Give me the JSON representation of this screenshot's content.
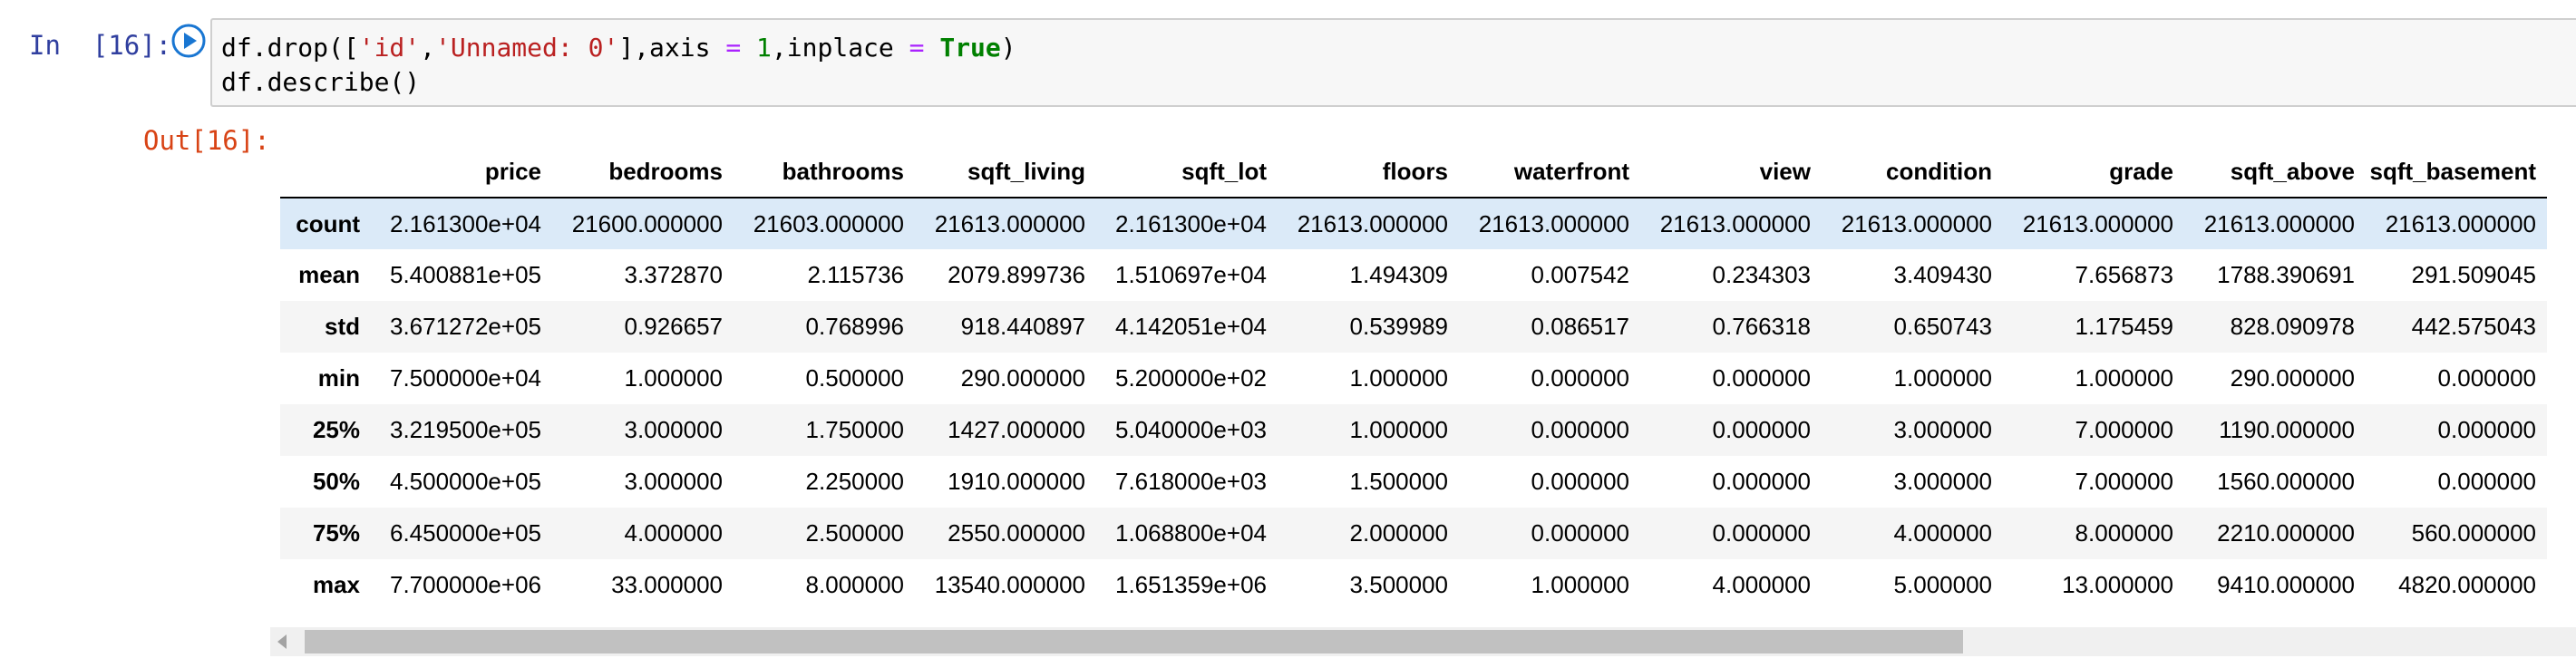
{
  "input_cell": {
    "prompt": "In  [16]:",
    "code": {
      "line1": {
        "call": "df.drop(",
        "list_open": "[",
        "str1": "'id'",
        "comma1": ",",
        "str2": "'Unnamed: 0'",
        "list_close": "]",
        "comma2": ",axis ",
        "eq1": "=",
        "num": " 1",
        "comma3": ",inplace ",
        "eq2": "=",
        "kw": " True",
        "close": ")"
      },
      "line2": "df.describe()"
    },
    "run_icon": "play-circle-icon"
  },
  "output_cell": {
    "prompt": "Out[16]:",
    "table": {
      "columns": [
        "price",
        "bedrooms",
        "bathrooms",
        "sqft_living",
        "sqft_lot",
        "floors",
        "waterfront",
        "view",
        "condition",
        "grade",
        "sqft_above",
        "sqft_basement"
      ],
      "rows": [
        {
          "label": "count",
          "values": [
            "2.161300e+04",
            "21600.000000",
            "21603.000000",
            "21613.000000",
            "2.161300e+04",
            "21613.000000",
            "21613.000000",
            "21613.000000",
            "21613.000000",
            "21613.000000",
            "21613.000000",
            "21613.000000"
          ]
        },
        {
          "label": "mean",
          "values": [
            "5.400881e+05",
            "3.372870",
            "2.115736",
            "2079.899736",
            "1.510697e+04",
            "1.494309",
            "0.007542",
            "0.234303",
            "3.409430",
            "7.656873",
            "1788.390691",
            "291.509045"
          ]
        },
        {
          "label": "std",
          "values": [
            "3.671272e+05",
            "0.926657",
            "0.768996",
            "918.440897",
            "4.142051e+04",
            "0.539989",
            "0.086517",
            "0.766318",
            "0.650743",
            "1.175459",
            "828.090978",
            "442.575043"
          ]
        },
        {
          "label": "min",
          "values": [
            "7.500000e+04",
            "1.000000",
            "0.500000",
            "290.000000",
            "5.200000e+02",
            "1.000000",
            "0.000000",
            "0.000000",
            "1.000000",
            "1.000000",
            "290.000000",
            "0.000000"
          ]
        },
        {
          "label": "25%",
          "values": [
            "3.219500e+05",
            "3.000000",
            "1.750000",
            "1427.000000",
            "5.040000e+03",
            "1.000000",
            "0.000000",
            "0.000000",
            "3.000000",
            "7.000000",
            "1190.000000",
            "0.000000"
          ]
        },
        {
          "label": "50%",
          "values": [
            "4.500000e+05",
            "3.000000",
            "2.250000",
            "1910.000000",
            "7.618000e+03",
            "1.500000",
            "0.000000",
            "0.000000",
            "3.000000",
            "7.000000",
            "1560.000000",
            "0.000000"
          ]
        },
        {
          "label": "75%",
          "values": [
            "6.450000e+05",
            "4.000000",
            "2.500000",
            "2550.000000",
            "1.068800e+04",
            "2.000000",
            "0.000000",
            "0.000000",
            "4.000000",
            "8.000000",
            "2210.000000",
            "560.000000"
          ]
        },
        {
          "label": "max",
          "values": [
            "7.700000e+06",
            "33.000000",
            "8.000000",
            "13540.000000",
            "1.651359e+06",
            "3.500000",
            "1.000000",
            "4.000000",
            "5.000000",
            "13.000000",
            "9410.000000",
            "4820.000000"
          ]
        }
      ],
      "highlighted_row": 0
    },
    "scrollbar": {
      "thumb_fraction": 0.73,
      "left_arrow_icon": "scroll-left-arrow-icon"
    }
  },
  "colors": {
    "in_prompt": "#303f9f",
    "out_prompt": "#d84315",
    "run_icon": "#1976d2",
    "string": "#ba2121",
    "keyword": "#008000",
    "operator": "#aa22ff",
    "row_highlight": "#dbeaf8"
  }
}
